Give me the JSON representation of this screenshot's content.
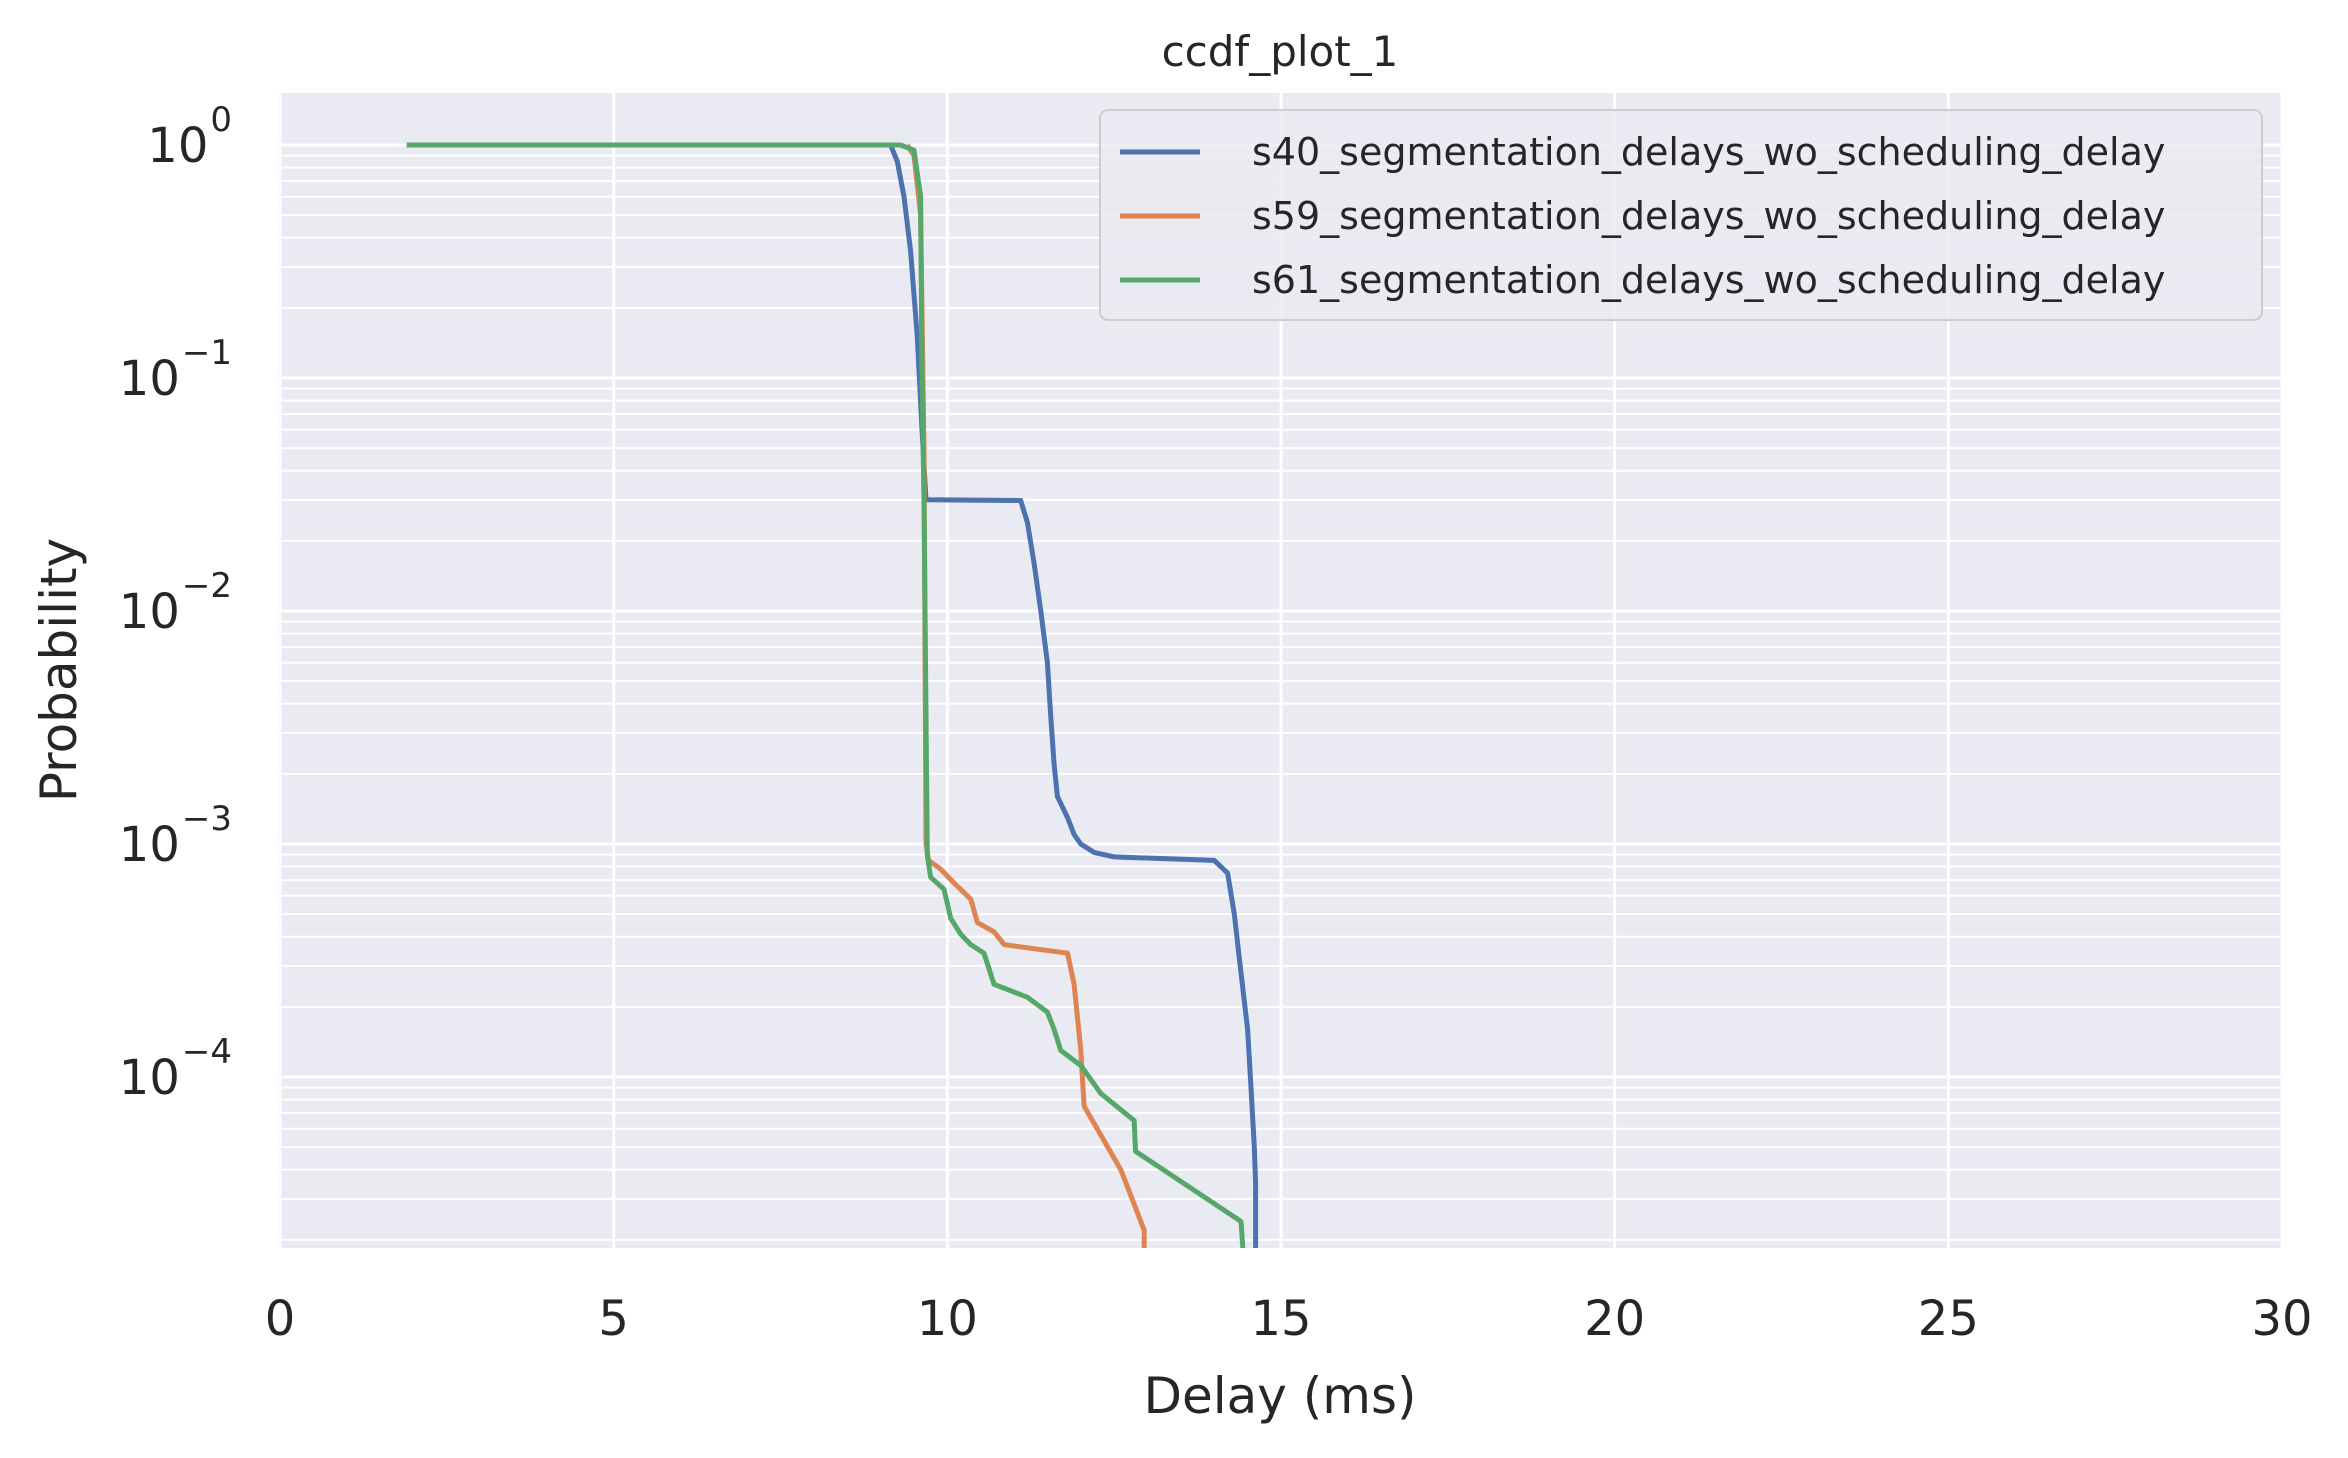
{
  "chart_data": {
    "type": "line",
    "title": "ccdf_plot_1",
    "xlabel": "Delay (ms)",
    "ylabel": "Probability",
    "xlim": [
      0,
      30
    ],
    "ylim": [
      1.5e-05,
      1.6
    ],
    "yscale": "log",
    "x_ticks": [
      {
        "value": 0,
        "label": "0"
      },
      {
        "value": 5,
        "label": "5"
      },
      {
        "value": 10,
        "label": "10"
      },
      {
        "value": 15,
        "label": "15"
      },
      {
        "value": 20,
        "label": "20"
      },
      {
        "value": 25,
        "label": "25"
      },
      {
        "value": 30,
        "label": "30"
      }
    ],
    "y_ticks": [
      {
        "value": 1,
        "base": "10",
        "exp": "0"
      },
      {
        "value": 0.1,
        "base": "10",
        "exp": "−1"
      },
      {
        "value": 0.01,
        "base": "10",
        "exp": "−2"
      },
      {
        "value": 0.001,
        "base": "10",
        "exp": "−3"
      },
      {
        "value": 0.0001,
        "base": "10",
        "exp": "−4"
      }
    ],
    "grid": true,
    "legend": "top-right",
    "background": "#eaeaf2",
    "grid_color": "#ffffff",
    "series": [
      {
        "name": "s40_segmentation_delays_wo_scheduling_delay",
        "color": "#4c72b0",
        "points": [
          [
            1.9,
            1.0
          ],
          [
            9.15,
            1.0
          ],
          [
            9.25,
            0.85
          ],
          [
            9.35,
            0.6
          ],
          [
            9.45,
            0.35
          ],
          [
            9.55,
            0.15
          ],
          [
            9.62,
            0.06
          ],
          [
            9.68,
            0.03
          ],
          [
            11.1,
            0.0298
          ],
          [
            11.2,
            0.024
          ],
          [
            11.3,
            0.016
          ],
          [
            11.4,
            0.01
          ],
          [
            11.5,
            0.006
          ],
          [
            11.55,
            0.0035
          ],
          [
            11.6,
            0.0022
          ],
          [
            11.65,
            0.0016
          ],
          [
            11.8,
            0.0013
          ],
          [
            11.9,
            0.0011
          ],
          [
            12.0,
            0.001
          ],
          [
            12.2,
            0.00092
          ],
          [
            12.5,
            0.00088
          ],
          [
            14.0,
            0.00085
          ],
          [
            14.2,
            0.00075
          ],
          [
            14.3,
            0.0005
          ],
          [
            14.4,
            0.00028
          ],
          [
            14.5,
            0.00016
          ],
          [
            14.55,
            9e-05
          ],
          [
            14.6,
            5e-05
          ],
          [
            14.62,
            3.5e-05
          ],
          [
            14.62,
            1.5e-05
          ]
        ]
      },
      {
        "name": "s59_segmentation_delays_wo_scheduling_delay",
        "color": "#dd8452",
        "points": [
          [
            9.4,
            1.0
          ],
          [
            9.5,
            0.9
          ],
          [
            9.6,
            0.5
          ],
          [
            9.65,
            0.05
          ],
          [
            9.68,
            0.001
          ],
          [
            9.72,
            0.00085
          ],
          [
            9.9,
            0.00078
          ],
          [
            10.1,
            0.00068
          ],
          [
            10.35,
            0.00058
          ],
          [
            10.45,
            0.00046
          ],
          [
            10.7,
            0.00042
          ],
          [
            10.85,
            0.00037
          ],
          [
            11.8,
            0.00034
          ],
          [
            11.9,
            0.00025
          ],
          [
            12.0,
            0.00013
          ],
          [
            12.05,
            7.5e-05
          ],
          [
            12.6,
            4e-05
          ],
          [
            12.95,
            2.2e-05
          ],
          [
            12.95,
            1.5e-05
          ]
        ]
      },
      {
        "name": "s61_segmentation_delays_wo_scheduling_delay",
        "color": "#55a868",
        "points": [
          [
            1.9,
            1.0
          ],
          [
            9.3,
            1.0
          ],
          [
            9.5,
            0.95
          ],
          [
            9.6,
            0.6
          ],
          [
            9.62,
            0.1
          ],
          [
            9.65,
            0.03
          ],
          [
            9.7,
            0.0009
          ],
          [
            9.75,
            0.00072
          ],
          [
            9.95,
            0.00064
          ],
          [
            10.05,
            0.00048
          ],
          [
            10.2,
            0.00041
          ],
          [
            10.35,
            0.00037
          ],
          [
            10.55,
            0.00034
          ],
          [
            10.7,
            0.00025
          ],
          [
            11.2,
            0.00022
          ],
          [
            11.5,
            0.00019
          ],
          [
            11.6,
            0.00016
          ],
          [
            11.7,
            0.00013
          ],
          [
            12.0,
            0.000112
          ],
          [
            12.3,
            8.5e-05
          ],
          [
            12.8,
            6.5e-05
          ],
          [
            12.82,
            4.8e-05
          ],
          [
            14.4,
            2.4e-05
          ],
          [
            14.45,
            1.5e-05
          ]
        ]
      }
    ]
  }
}
